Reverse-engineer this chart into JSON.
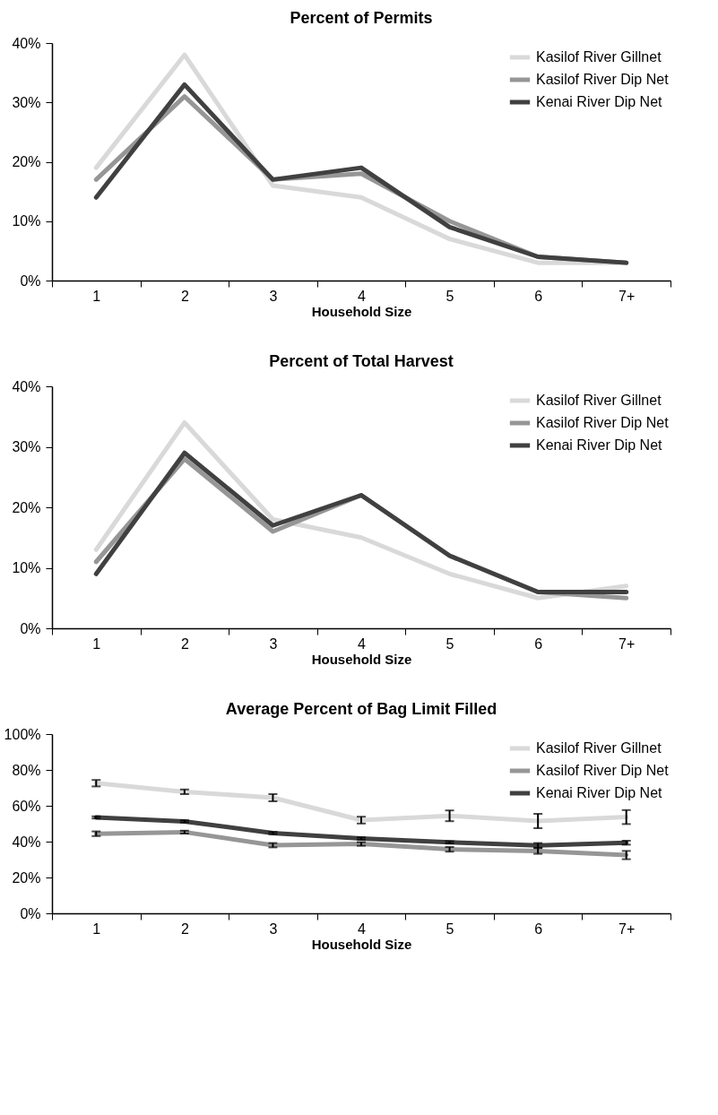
{
  "chart_data": [
    {
      "type": "line",
      "title": "Percent of Permits",
      "xlabel": "Household Size",
      "categories": [
        "1",
        "2",
        "3",
        "4",
        "5",
        "6",
        "7+"
      ],
      "ylim": [
        0,
        40
      ],
      "yticks": [
        {
          "value": 0,
          "label": "0%"
        },
        {
          "value": 10,
          "label": "10%"
        },
        {
          "value": 20,
          "label": "20%"
        },
        {
          "value": 30,
          "label": "30%"
        },
        {
          "value": 40,
          "label": "40%"
        }
      ],
      "grid": false,
      "legend": "top right",
      "marker": "none",
      "line_style": "solid",
      "series": [
        {
          "name": "Kasilof River Gillnet",
          "color": "#d9d9d9",
          "values": [
            19,
            38,
            16,
            14,
            7,
            3,
            3
          ]
        },
        {
          "name": "Kasilof River Dip Net",
          "color": "#969696",
          "values": [
            17,
            31,
            17,
            18,
            10,
            4,
            3
          ]
        },
        {
          "name": "Kenai River Dip Net",
          "color": "#404040",
          "values": [
            14,
            33,
            17,
            19,
            9,
            4,
            3
          ]
        }
      ]
    },
    {
      "type": "line",
      "title": "Percent of Total Harvest",
      "xlabel": "Household Size",
      "categories": [
        "1",
        "2",
        "3",
        "4",
        "5",
        "6",
        "7+"
      ],
      "ylim": [
        0,
        40
      ],
      "yticks": [
        {
          "value": 0,
          "label": "0%"
        },
        {
          "value": 10,
          "label": "10%"
        },
        {
          "value": 20,
          "label": "20%"
        },
        {
          "value": 30,
          "label": "30%"
        },
        {
          "value": 40,
          "label": "40%"
        }
      ],
      "grid": false,
      "legend": "top right",
      "marker": "none",
      "line_style": "solid",
      "series": [
        {
          "name": "Kasilof River Gillnet",
          "color": "#d9d9d9",
          "values": [
            13,
            34,
            18,
            15,
            9,
            5,
            7
          ]
        },
        {
          "name": "Kasilof River Dip Net",
          "color": "#969696",
          "values": [
            11,
            28,
            16,
            22,
            12,
            6,
            5
          ]
        },
        {
          "name": "Kenai River Dip Net",
          "color": "#404040",
          "values": [
            9,
            29,
            17,
            22,
            12,
            6,
            6
          ]
        }
      ]
    },
    {
      "type": "line",
      "title": "Average Percent of Bag Limit Filled",
      "xlabel": "Household Size",
      "categories": [
        "1",
        "2",
        "3",
        "4",
        "5",
        "6",
        "7+"
      ],
      "ylim": [
        0,
        100
      ],
      "yticks": [
        {
          "value": 0,
          "label": "0%"
        },
        {
          "value": 20,
          "label": "20%"
        },
        {
          "value": 40,
          "label": "40%"
        },
        {
          "value": 60,
          "label": "60%"
        },
        {
          "value": 80,
          "label": "80%"
        },
        {
          "value": 100,
          "label": "100%"
        }
      ],
      "grid": false,
      "legend": "top right",
      "marker": "none",
      "line_style": "solid",
      "series": [
        {
          "name": "Kasilof River Gillnet",
          "color": "#d9d9d9",
          "values": [
            72.6,
            67.8,
            64.5,
            52,
            54.4,
            51.5,
            53.7
          ],
          "errors": [
            1.8,
            1.3,
            2,
            1.9,
            3,
            4,
            3.9
          ]
        },
        {
          "name": "Kasilof River Dip Net",
          "color": "#969696",
          "values": [
            44.4,
            45.3,
            38,
            38.7,
            35.7,
            34.8,
            32.5
          ],
          "errors": [
            1.3,
            0.8,
            1.2,
            1,
            1.3,
            1.6,
            2.3
          ]
        },
        {
          "name": "Kenai River Dip Net",
          "color": "#404040",
          "values": [
            53.5,
            51.3,
            44.8,
            41.8,
            39.6,
            37.9,
            39.4
          ],
          "errors": [
            0.6,
            0.6,
            0.6,
            0.6,
            0.6,
            1.3,
            1.1
          ]
        }
      ]
    }
  ]
}
